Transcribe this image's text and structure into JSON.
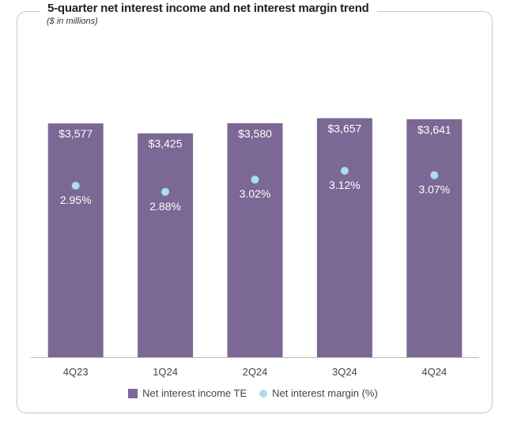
{
  "chart_data": {
    "type": "bar",
    "title": "5-quarter net interest income and net interest margin trend",
    "subtitle": "($ in millions)",
    "categories": [
      "4Q23",
      "1Q24",
      "2Q24",
      "3Q24",
      "4Q24"
    ],
    "series": [
      {
        "name": "Net interest income TE",
        "kind": "bar",
        "values": [
          3577,
          3425,
          3580,
          3657,
          3641
        ],
        "labels": [
          "$3,577",
          "$3,425",
          "$3,580",
          "$3,657",
          "$3,641"
        ]
      },
      {
        "name": "Net interest margin (%)",
        "kind": "dot",
        "values": [
          2.95,
          2.88,
          3.02,
          3.12,
          3.07
        ],
        "labels": [
          "2.95%",
          "2.88%",
          "3.02%",
          "3.12%",
          "3.07%"
        ]
      }
    ],
    "bar_axis_range": [
      0,
      3700
    ],
    "margin_axis_range": [
      1.0,
      3.75
    ],
    "legend_position": "bottom",
    "grid": false
  },
  "colors": {
    "bar": "#7b6894",
    "dot": "#a9dfe6",
    "bar_label": "#ffffff",
    "axis": "#bbbbbb",
    "tick_label": "#444444"
  }
}
